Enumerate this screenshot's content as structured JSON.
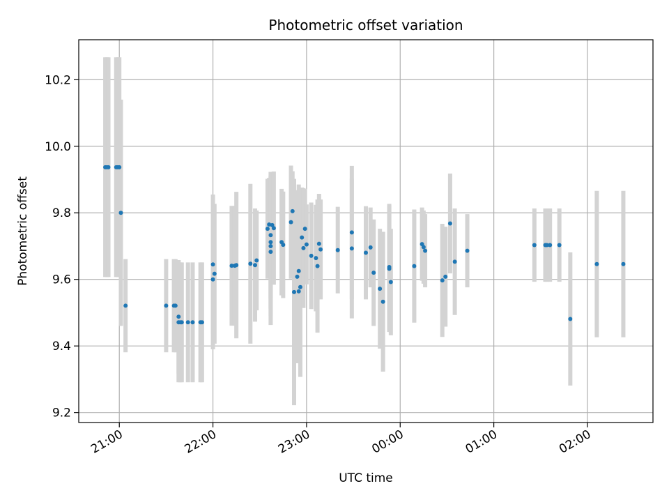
{
  "chart_data": {
    "type": "scatter",
    "title": "Photometric offset variation",
    "xlabel": "UTC time",
    "ylabel": "Photometric offset",
    "x_unit": "UTC",
    "xlim": [
      "20:34",
      "26:42"
    ],
    "ylim": [
      9.17,
      10.32
    ],
    "x_ticks": [
      "21:00",
      "22:00",
      "23:00",
      "00:00",
      "01:00",
      "02:00"
    ],
    "y_ticks": [
      "9.2",
      "9.4",
      "9.6",
      "9.8",
      "10.0",
      "10.2"
    ],
    "grid": true,
    "colors": {
      "points": "#1f77b4",
      "errorbars": "#d3d3d3",
      "grid": "#b0b0b0",
      "axes": "#000000"
    },
    "points": [
      {
        "time": "20:51",
        "y": 9.937,
        "err": 0.33
      },
      {
        "time": "20:52",
        "y": 9.937,
        "err": 0.33
      },
      {
        "time": "20:53",
        "y": 9.937,
        "err": 0.33
      },
      {
        "time": "20:58",
        "y": 9.937,
        "err": 0.33
      },
      {
        "time": "20:59",
        "y": 9.937,
        "err": 0.33
      },
      {
        "time": "21:00",
        "y": 9.937,
        "err": 0.33
      },
      {
        "time": "21:01",
        "y": 9.8,
        "err": 0.34
      },
      {
        "time": "21:04",
        "y": 9.521,
        "err": 0.14
      },
      {
        "time": "21:30",
        "y": 9.521,
        "err": 0.14
      },
      {
        "time": "21:35",
        "y": 9.521,
        "err": 0.14
      },
      {
        "time": "21:36",
        "y": 9.521,
        "err": 0.14
      },
      {
        "time": "21:38",
        "y": 9.488,
        "err": 0.17
      },
      {
        "time": "21:38",
        "y": 9.471,
        "err": 0.18
      },
      {
        "time": "21:39",
        "y": 9.471,
        "err": 0.18
      },
      {
        "time": "21:40",
        "y": 9.471,
        "err": 0.18
      },
      {
        "time": "21:44",
        "y": 9.471,
        "err": 0.18
      },
      {
        "time": "21:47",
        "y": 9.471,
        "err": 0.18
      },
      {
        "time": "21:52",
        "y": 9.471,
        "err": 0.18
      },
      {
        "time": "21:53",
        "y": 9.471,
        "err": 0.18
      },
      {
        "time": "22:00",
        "y": 9.645,
        "err": 0.21
      },
      {
        "time": "22:00",
        "y": 9.6,
        "err": 0.21
      },
      {
        "time": "22:01",
        "y": 9.617,
        "err": 0.21
      },
      {
        "time": "22:12",
        "y": 9.641,
        "err": 0.18
      },
      {
        "time": "22:14",
        "y": 9.641,
        "err": 0.18
      },
      {
        "time": "22:15",
        "y": 9.643,
        "err": 0.22
      },
      {
        "time": "22:24",
        "y": 9.647,
        "err": 0.24
      },
      {
        "time": "22:27",
        "y": 9.643,
        "err": 0.17
      },
      {
        "time": "22:28",
        "y": 9.657,
        "err": 0.15
      },
      {
        "time": "22:35",
        "y": 9.752,
        "err": 0.15
      },
      {
        "time": "22:36",
        "y": 9.765,
        "err": 0.14
      },
      {
        "time": "22:37",
        "y": 9.733,
        "err": 0.19
      },
      {
        "time": "22:37",
        "y": 9.712,
        "err": 0.2
      },
      {
        "time": "22:37",
        "y": 9.7,
        "err": 0.21
      },
      {
        "time": "22:37",
        "y": 9.683,
        "err": 0.22
      },
      {
        "time": "22:38",
        "y": 9.763,
        "err": 0.16
      },
      {
        "time": "22:39",
        "y": 9.754,
        "err": 0.17
      },
      {
        "time": "22:44",
        "y": 9.712,
        "err": 0.16
      },
      {
        "time": "22:45",
        "y": 9.704,
        "err": 0.16
      },
      {
        "time": "22:50",
        "y": 9.772,
        "err": 0.17
      },
      {
        "time": "22:51",
        "y": 9.805,
        "err": 0.12
      },
      {
        "time": "22:52",
        "y": 9.562,
        "err": 0.34
      },
      {
        "time": "22:54",
        "y": 9.608,
        "err": 0.26
      },
      {
        "time": "22:55",
        "y": 9.625,
        "err": 0.26
      },
      {
        "time": "22:55",
        "y": 9.564,
        "err": 0.21
      },
      {
        "time": "22:56",
        "y": 9.577,
        "err": 0.27
      },
      {
        "time": "22:57",
        "y": 9.726,
        "err": 0.15
      },
      {
        "time": "22:58",
        "y": 9.694,
        "err": 0.18
      },
      {
        "time": "22:59",
        "y": 9.752,
        "err": 0.12
      },
      {
        "time": "23:00",
        "y": 9.705,
        "err": 0.12
      },
      {
        "time": "23:03",
        "y": 9.671,
        "err": 0.16
      },
      {
        "time": "23:06",
        "y": 9.664,
        "err": 0.16
      },
      {
        "time": "23:07",
        "y": 9.64,
        "err": 0.2
      },
      {
        "time": "23:08",
        "y": 9.707,
        "err": 0.15
      },
      {
        "time": "23:09",
        "y": 9.69,
        "err": 0.15
      },
      {
        "time": "23:20",
        "y": 9.688,
        "err": 0.13
      },
      {
        "time": "23:29",
        "y": 9.741,
        "err": 0.2
      },
      {
        "time": "23:29",
        "y": 9.693,
        "err": 0.21
      },
      {
        "time": "23:38",
        "y": 9.68,
        "err": 0.14
      },
      {
        "time": "23:41",
        "y": 9.696,
        "err": 0.12
      },
      {
        "time": "23:43",
        "y": 9.62,
        "err": 0.16
      },
      {
        "time": "23:47",
        "y": 9.572,
        "err": 0.18
      },
      {
        "time": "23:49",
        "y": 9.533,
        "err": 0.21
      },
      {
        "time": "23:53",
        "y": 9.637,
        "err": 0.19
      },
      {
        "time": "23:53",
        "y": 9.632,
        "err": 0.19
      },
      {
        "time": "23:54",
        "y": 9.592,
        "err": 0.16
      },
      {
        "time": "24:09",
        "y": 9.64,
        "err": 0.17
      },
      {
        "time": "24:14",
        "y": 9.706,
        "err": 0.11
      },
      {
        "time": "24:15",
        "y": 9.697,
        "err": 0.11
      },
      {
        "time": "24:16",
        "y": 9.686,
        "err": 0.11
      },
      {
        "time": "24:27",
        "y": 9.597,
        "err": 0.17
      },
      {
        "time": "24:29",
        "y": 9.608,
        "err": 0.15
      },
      {
        "time": "24:32",
        "y": 9.768,
        "err": 0.15
      },
      {
        "time": "24:35",
        "y": 9.653,
        "err": 0.16
      },
      {
        "time": "24:43",
        "y": 9.686,
        "err": 0.11
      },
      {
        "time": "25:26",
        "y": 9.703,
        "err": 0.11
      },
      {
        "time": "25:33",
        "y": 9.703,
        "err": 0.11
      },
      {
        "time": "25:34",
        "y": 9.703,
        "err": 0.11
      },
      {
        "time": "25:36",
        "y": 9.703,
        "err": 0.11
      },
      {
        "time": "25:42",
        "y": 9.703,
        "err": 0.11
      },
      {
        "time": "25:49",
        "y": 9.481,
        "err": 0.2
      },
      {
        "time": "26:06",
        "y": 9.646,
        "err": 0.22
      },
      {
        "time": "26:23",
        "y": 9.646,
        "err": 0.22
      }
    ]
  }
}
